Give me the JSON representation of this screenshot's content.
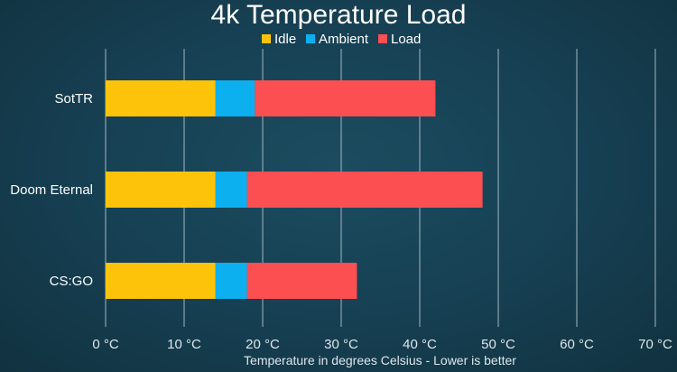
{
  "chart_data": {
    "type": "bar",
    "orientation": "horizontal",
    "stacked": true,
    "title": "4k Temperature Load",
    "xlabel": "Temperature in degrees Celsius - Lower is better",
    "ylabel": "",
    "categories": [
      "SotTR",
      "Doom Eternal",
      "CS:GO"
    ],
    "series": [
      {
        "name": "Idle",
        "color": "#fdc30a",
        "values": [
          14,
          14,
          14
        ]
      },
      {
        "name": "Ambient",
        "color": "#0db0ef",
        "values": [
          5,
          4,
          4
        ]
      },
      {
        "name": "Load",
        "color": "#fc4f52",
        "values": [
          23,
          30,
          14
        ]
      }
    ],
    "xlim": [
      0,
      70
    ],
    "xticks": [
      0,
      10,
      20,
      30,
      40,
      50,
      60,
      70
    ],
    "xtick_labels": [
      "0 °C",
      "10 °C",
      "20 °C",
      "30 °C",
      "40 °C",
      "50 °C",
      "60 °C",
      "70 °C"
    ],
    "grid": true,
    "legend_position": "top"
  }
}
